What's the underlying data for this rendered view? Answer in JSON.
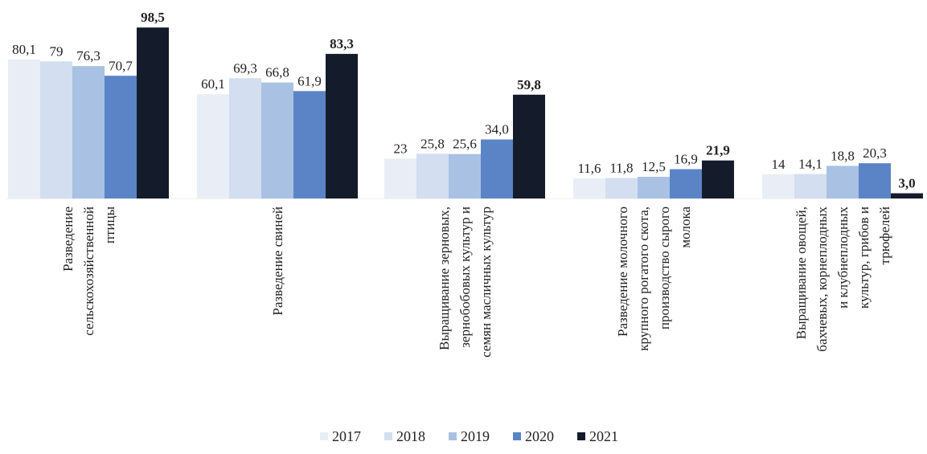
{
  "chart_data": {
    "type": "bar",
    "title": "",
    "xlabel": "",
    "ylabel": "",
    "ylim": [
      0,
      100
    ],
    "grid": false,
    "legend_position": "bottom-center",
    "categories": [
      [
        "Разведение",
        "сельскохозяйственной",
        "птицы"
      ],
      [
        "Разведение свиней"
      ],
      [
        "Выращивание зерновых,",
        "зернобобовых культур и",
        "семян масличных культур"
      ],
      [
        "Разведение молочного",
        "крупного рогатого скота,",
        "производство сырого",
        "молока"
      ],
      [
        "Выращивание овощей,",
        "бахчевых, корнеплодных",
        "и клубнеплодных",
        "культур, грибов и",
        "трюфелей"
      ]
    ],
    "series": [
      {
        "name": "2017",
        "color": "#e9eef6",
        "values": [
          80.1,
          60.1,
          23,
          11.6,
          14
        ],
        "labels": [
          "80,1",
          "60,1",
          "23",
          "11,6",
          "14"
        ]
      },
      {
        "name": "2018",
        "color": "#d3def0",
        "values": [
          79,
          69.3,
          25.8,
          11.8,
          14.1
        ],
        "labels": [
          "79",
          "69,3",
          "25,8",
          "11,8",
          "14,1"
        ]
      },
      {
        "name": "2019",
        "color": "#a9c1e3",
        "values": [
          76.3,
          66.8,
          25.6,
          12.5,
          18.8
        ],
        "labels": [
          "76,3",
          "66,8",
          "25,6",
          "12,5",
          "18,8"
        ]
      },
      {
        "name": "2020",
        "color": "#5b84c6",
        "values": [
          70.7,
          61.9,
          34.0,
          16.9,
          20.3
        ],
        "labels": [
          "70,7",
          "61,9",
          "34,0",
          "16,9",
          "20,3"
        ]
      },
      {
        "name": "2021",
        "color": "#141c2b",
        "values": [
          98.5,
          83.3,
          59.8,
          21.9,
          3.0
        ],
        "labels": [
          "98,5",
          "83,3",
          "59,8",
          "21,9",
          "3,0"
        ],
        "bold_labels": true
      }
    ]
  }
}
